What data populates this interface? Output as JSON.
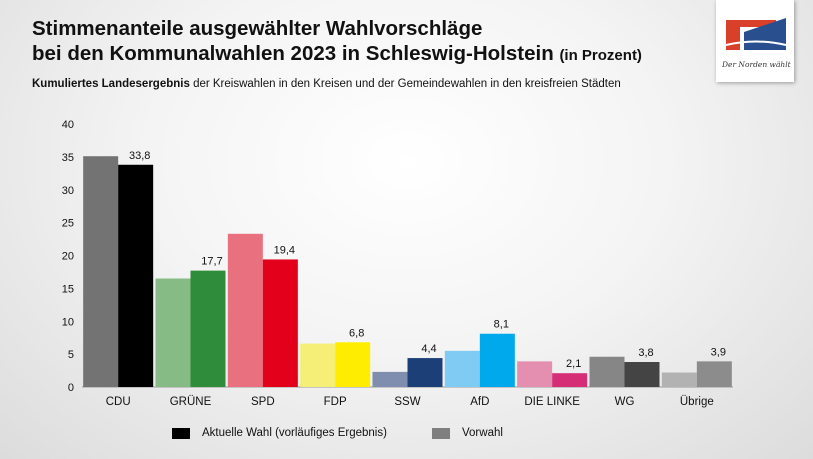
{
  "header": {
    "title_line1": "Stimmenanteile ausgewählter Wahlvorschläge",
    "title_line2": "bei den Kommunalwahlen 2023 in Schleswig-Holstein",
    "title_unit": "(in Prozent)",
    "subtitle_bold": "Kumuliertes Landesergebnis",
    "subtitle_rest": "der Kreiswahlen in den Kreisen und der Gemeindewahlen in den kreisfreien Städten"
  },
  "logo": {
    "tagline": "Der Norden wählt",
    "colors": [
      "#d8402a",
      "#2a4f8f"
    ]
  },
  "legend": {
    "current_label": "Aktuelle Wahl (vorläufiges Ergebnis)",
    "previous_label": "Vorwahl",
    "current_color": "#000000",
    "previous_color": "#7f7f7f"
  },
  "chart_data": {
    "type": "bar",
    "title": "Stimmenanteile ausgewählter Wahlvorschläge bei den Kommunalwahlen 2023 in Schleswig-Holstein (in Prozent)",
    "xlabel": "",
    "ylabel": "",
    "ylim": [
      0,
      40
    ],
    "yticks": [
      0,
      5,
      10,
      15,
      20,
      25,
      30,
      35,
      40
    ],
    "grid": false,
    "categories": [
      "CDU",
      "GRÜNE",
      "SPD",
      "FDP",
      "SSW",
      "AfD",
      "DIE LINKE",
      "WG",
      "Übrige"
    ],
    "series": [
      {
        "name": "Vorwahl",
        "values": [
          35.1,
          16.5,
          23.3,
          6.6,
          2.3,
          5.5,
          3.9,
          4.6,
          2.2
        ],
        "labels": [
          "",
          "",
          "",
          "",
          "",
          "",
          "",
          "",
          ""
        ]
      },
      {
        "name": "Aktuelle Wahl (vorläufiges Ergebnis)",
        "values": [
          33.8,
          17.7,
          19.4,
          6.8,
          4.4,
          8.1,
          2.1,
          3.8,
          3.9
        ],
        "labels": [
          "33,8",
          "17,7",
          "19,4",
          "6,8",
          "4,4",
          "8,1",
          "2,1",
          "3,8",
          "3,9"
        ]
      }
    ],
    "colors_previous": [
      "#737373",
      "#86bb86",
      "#e9707e",
      "#f5ef78",
      "#7f8eae",
      "#7fcbf3",
      "#e48fb0",
      "#868686",
      "#b2b2b2"
    ],
    "colors_current": [
      "#000000",
      "#2f8c3b",
      "#e2001a",
      "#ffed00",
      "#1c3f77",
      "#00a8ec",
      "#d62d77",
      "#444444",
      "#8c8c8c"
    ]
  }
}
